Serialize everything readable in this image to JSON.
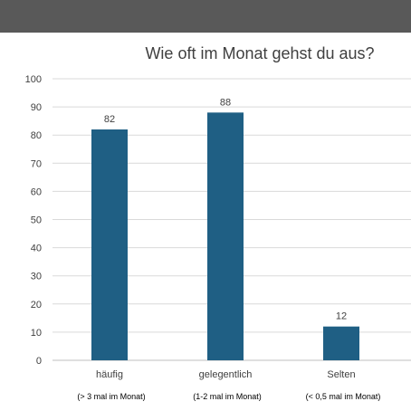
{
  "chart_data": {
    "type": "bar",
    "title": "Wie oft im Monat gehst du aus?",
    "categories": [
      "häufig",
      "gelegentlich",
      "Selten"
    ],
    "category_sublabels": [
      "(> 3 mal im Monat)",
      "(1-2 mal im Monat)",
      "(< 0,5 mal im Monat)"
    ],
    "values": [
      82,
      88,
      12
    ],
    "data_labels": [
      "82",
      "88",
      "12"
    ],
    "yticks": [
      "0",
      "10",
      "20",
      "30",
      "40",
      "50",
      "60",
      "70",
      "80",
      "90",
      "100"
    ],
    "ylim": [
      0,
      100
    ],
    "grid": true,
    "legend": "none",
    "bar_color": "#1f5f84",
    "header_bar_color": "#595959"
  }
}
